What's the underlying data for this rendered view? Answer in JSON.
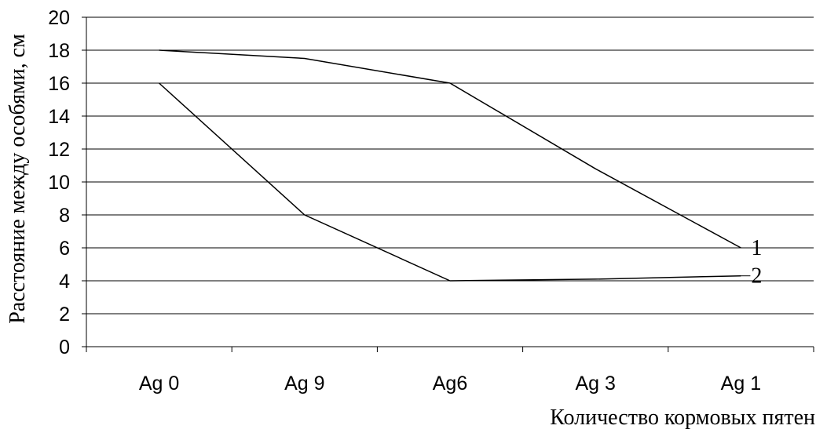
{
  "chart_data": {
    "type": "line",
    "categories": [
      "Ag 0",
      "Ag 9",
      "Ag6",
      "Ag 3",
      "Ag 1"
    ],
    "series": [
      {
        "name": "1",
        "values": [
          18,
          17.5,
          16,
          10.8,
          6
        ]
      },
      {
        "name": "2",
        "values": [
          16,
          8,
          4,
          4.1,
          4.3
        ]
      }
    ],
    "xlabel": "Количество кормовых пятен",
    "ylabel": "Расстояние между особями, см",
    "ylim": [
      0,
      20
    ],
    "yticks": [
      "0",
      "2",
      "4",
      "6",
      "8",
      "10",
      "12",
      "14",
      "16",
      "18",
      "20"
    ],
    "grid": true,
    "line_color": "#000000"
  }
}
